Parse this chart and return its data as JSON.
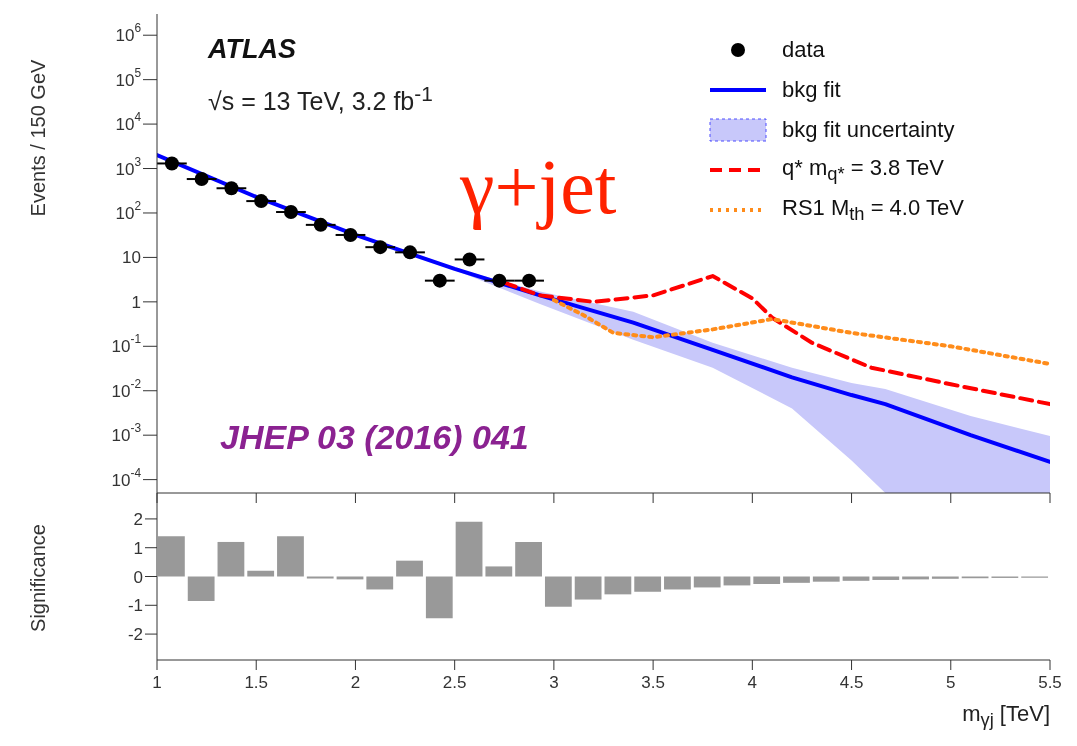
{
  "chart_data": [
    {
      "type": "line",
      "log": "y",
      "xlim": [
        1,
        5.5
      ],
      "xticks": [
        1,
        1.5,
        2,
        2.5,
        3,
        3.5,
        4,
        4.5,
        5,
        5.5
      ],
      "tick_labels": "y",
      "ylim": [
        5e-05,
        3000000
      ],
      "yticks": [
        {
          "value": 1000000,
          "label": "10$^{6}$"
        },
        {
          "value": 100000,
          "label": "10$^{5}$"
        },
        {
          "value": 10000,
          "label": "10$^{4}$"
        },
        {
          "value": 1000,
          "label": "10$^{3}$"
        },
        {
          "value": 100,
          "label": "10$^{2}$"
        },
        10,
        1,
        {
          "value": 0.1,
          "label": "10$^{-1}$"
        },
        {
          "value": 0.01,
          "label": "10$^{-2}$"
        },
        {
          "value": 0.001,
          "label": "10$^{-3}$"
        },
        {
          "value": 0.0001,
          "label": "10$^{-4}$"
        }
      ],
      "ylabel": "Events / 150 GeV",
      "legend": "top right",
      "annotations": [
        "ATLAS",
        "√s = 13 TeV, 3.2 fb$^{-1}$",
        "γ+jet",
        "JHEP 03 (2016) 041"
      ],
      "series": [
        {
          "name": "data",
          "type": "scatter",
          "color": "#000000",
          "marker": "circle",
          "x": [
            1.075,
            1.225,
            1.375,
            1.525,
            1.675,
            1.825,
            1.975,
            2.125,
            2.275,
            2.425,
            2.575,
            2.725,
            2.875
          ],
          "values": [
            1300,
            580,
            360,
            185,
            105,
            54,
            32,
            17,
            13,
            3,
            9,
            3,
            3
          ],
          "xerrors": [
            0.075,
            0.075,
            0.075,
            0.075,
            0.075,
            0.075,
            0.075,
            0.075,
            0.075,
            0.075,
            0.075,
            0.075,
            0.075
          ]
        },
        {
          "name": "bkg fit",
          "color": "#0000ff",
          "line_style": "solid",
          "x": [
            1,
            1.5,
            2,
            2.5,
            2.93,
            3.4,
            3.8,
            4.2,
            4.5,
            4.67,
            5.1,
            5.5
          ],
          "values": [
            2000,
            230,
            32,
            5.5,
            1.4,
            0.34,
            0.083,
            0.02,
            0.008,
            0.005,
            0.001,
            0.00025
          ],
          "lower": [
            1900,
            220,
            30,
            5.2,
            0.9,
            0.14,
            0.033,
            0.004,
            0.00027,
            5e-05,
            5e-05,
            5e-05
          ],
          "upper": [
            2100,
            240,
            34,
            5.8,
            1.7,
            0.6,
            0.12,
            0.033,
            0.015,
            0.011,
            0.0027,
            0.00096
          ]
        },
        {
          "name": "bkg fit uncertainty",
          "type": "area",
          "color": "#c8c8fa"
        },
        {
          "name": "q* m$_{q*}$ = 3.8 TeV",
          "color": "#ff0000",
          "line_style": "dashed",
          "x": [
            2.75,
            2.93,
            3.2,
            3.5,
            3.8,
            4.0,
            4.1,
            4.3,
            4.6,
            5.0,
            5.5
          ],
          "values": [
            2.7,
            1.4,
            1,
            1.4,
            3.8,
            1.2,
            0.44,
            0.12,
            0.033,
            0.014,
            0.005
          ]
        },
        {
          "name": "RS1 M$_{th}$ = 4.0 TeV",
          "color": "#ff8c1a",
          "line_style": "dotted",
          "x": [
            3.0,
            3.15,
            3.3,
            3.5,
            3.8,
            4.1,
            4.5,
            5.0,
            5.5
          ],
          "values": [
            1.1,
            0.5,
            0.2,
            0.16,
            0.24,
            0.41,
            0.2,
            0.1,
            0.04
          ]
        }
      ]
    },
    {
      "type": "histogram",
      "color": "#999999",
      "xlim": [
        1,
        5.5
      ],
      "xticks": [
        1,
        1.5,
        2,
        2.5,
        3,
        3.5,
        4,
        4.5,
        5,
        5.5
      ],
      "ylim": [
        -2.9,
        2.9
      ],
      "yticks": [
        -2,
        -1,
        0,
        1,
        2
      ],
      "xlabel": "m$_{γj}$ [TeV]",
      "ylabel": "Significance",
      "bins": [
        1,
        1.15,
        1.3,
        1.45,
        1.6,
        1.75,
        1.9,
        2.05,
        2.2,
        2.35,
        2.5,
        2.65,
        2.8,
        2.95,
        3.1,
        3.25,
        3.4,
        3.55,
        3.7,
        3.85,
        4.0,
        4.15,
        4.3,
        4.45,
        4.6,
        4.75,
        4.9,
        5.05,
        5.2,
        5.35,
        5.5
      ],
      "values": [
        1.4,
        -0.85,
        1.2,
        0.2,
        1.4,
        -0.07,
        -0.1,
        -0.45,
        0.55,
        -1.45,
        1.9,
        0.35,
        1.2,
        -1.05,
        -0.8,
        -0.62,
        -0.53,
        -0.45,
        -0.38,
        -0.31,
        -0.26,
        -0.22,
        -0.18,
        -0.15,
        -0.12,
        -0.1,
        -0.08,
        -0.06,
        -0.05,
        -0.04
      ]
    }
  ]
}
